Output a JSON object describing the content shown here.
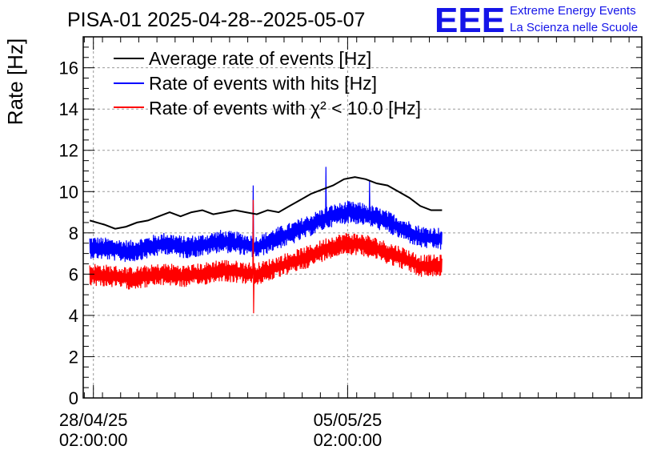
{
  "chart_data": {
    "type": "line",
    "title": "PISA-01 2025-04-28--2025-05-07",
    "xlabel": "",
    "ylabel": "Rate [Hz]",
    "ylim": [
      0,
      17.5
    ],
    "yticks": [
      0,
      2,
      4,
      6,
      8,
      10,
      12,
      14,
      16
    ],
    "ytick_labels": [
      "0",
      "2",
      "4",
      "6",
      "8",
      "10",
      "12",
      "14",
      "16"
    ],
    "x_unit": "days since 28/04/25 02:00:00",
    "xlim": [
      -0.28,
      15.1
    ],
    "xticks": [
      {
        "x": 0,
        "date": "28/04/25",
        "time": "02:00:00"
      },
      {
        "x": 7,
        "date": "05/05/25",
        "time": "02:00:00"
      }
    ],
    "grid": true,
    "legend_position": "top-left",
    "series": [
      {
        "name": "Average rate of events [Hz]",
        "color": "#000000",
        "x": [
          -0.1,
          0.3,
          0.6,
          0.9,
          1.2,
          1.5,
          1.8,
          2.1,
          2.4,
          2.7,
          3.0,
          3.3,
          3.6,
          3.9,
          4.2,
          4.5,
          4.8,
          5.1,
          5.4,
          5.7,
          6.0,
          6.3,
          6.6,
          6.9,
          7.2,
          7.5,
          7.8,
          8.1,
          8.4,
          8.7,
          9.0,
          9.3,
          9.6
        ],
        "y": [
          8.6,
          8.4,
          8.2,
          8.3,
          8.5,
          8.6,
          8.8,
          9.0,
          8.8,
          9.0,
          9.1,
          8.9,
          9.0,
          9.1,
          9.0,
          8.9,
          9.1,
          9.0,
          9.3,
          9.6,
          9.9,
          10.1,
          10.3,
          10.6,
          10.7,
          10.6,
          10.4,
          10.3,
          10.0,
          9.7,
          9.3,
          9.1,
          9.1
        ]
      },
      {
        "name": "Rate of events with hits [Hz]",
        "color": "#0000ff",
        "x": [
          -0.1,
          0.5,
          1.0,
          1.5,
          2.0,
          2.5,
          3.0,
          3.5,
          4.0,
          4.5,
          5.0,
          5.5,
          6.0,
          6.5,
          7.0,
          7.5,
          8.0,
          8.5,
          9.0,
          9.6
        ],
        "y": [
          7.3,
          7.2,
          7.1,
          7.3,
          7.5,
          7.3,
          7.4,
          7.6,
          7.5,
          7.3,
          7.7,
          8.0,
          8.4,
          8.8,
          9.0,
          8.9,
          8.6,
          8.2,
          7.8,
          7.7
        ],
        "peaks": [
          {
            "x": 4.4,
            "y": 10.3
          },
          {
            "x": 6.4,
            "y": 11.2
          },
          {
            "x": 7.6,
            "y": 10.5
          }
        ]
      },
      {
        "name": "Rate of events with χ² < 10.0 [Hz]",
        "color": "#ff0000",
        "x": [
          -0.1,
          0.5,
          1.0,
          1.5,
          2.0,
          2.5,
          3.0,
          3.5,
          4.0,
          4.5,
          5.0,
          5.5,
          6.0,
          6.5,
          7.0,
          7.5,
          8.0,
          8.5,
          9.0,
          9.6
        ],
        "y": [
          6.0,
          5.9,
          5.8,
          5.9,
          6.0,
          5.9,
          6.0,
          6.2,
          6.1,
          6.0,
          6.3,
          6.6,
          6.9,
          7.3,
          7.5,
          7.4,
          7.1,
          6.8,
          6.4,
          6.4
        ],
        "peaks": [
          {
            "x": 4.4,
            "y": 9.6
          }
        ],
        "dips": [
          {
            "x": 4.4,
            "y": 4.1
          }
        ]
      }
    ]
  },
  "logo": {
    "text": "EEE",
    "line1": "Extreme Energy Events",
    "line2": "La Scienza nelle Scuole",
    "color": "#1414e8"
  }
}
